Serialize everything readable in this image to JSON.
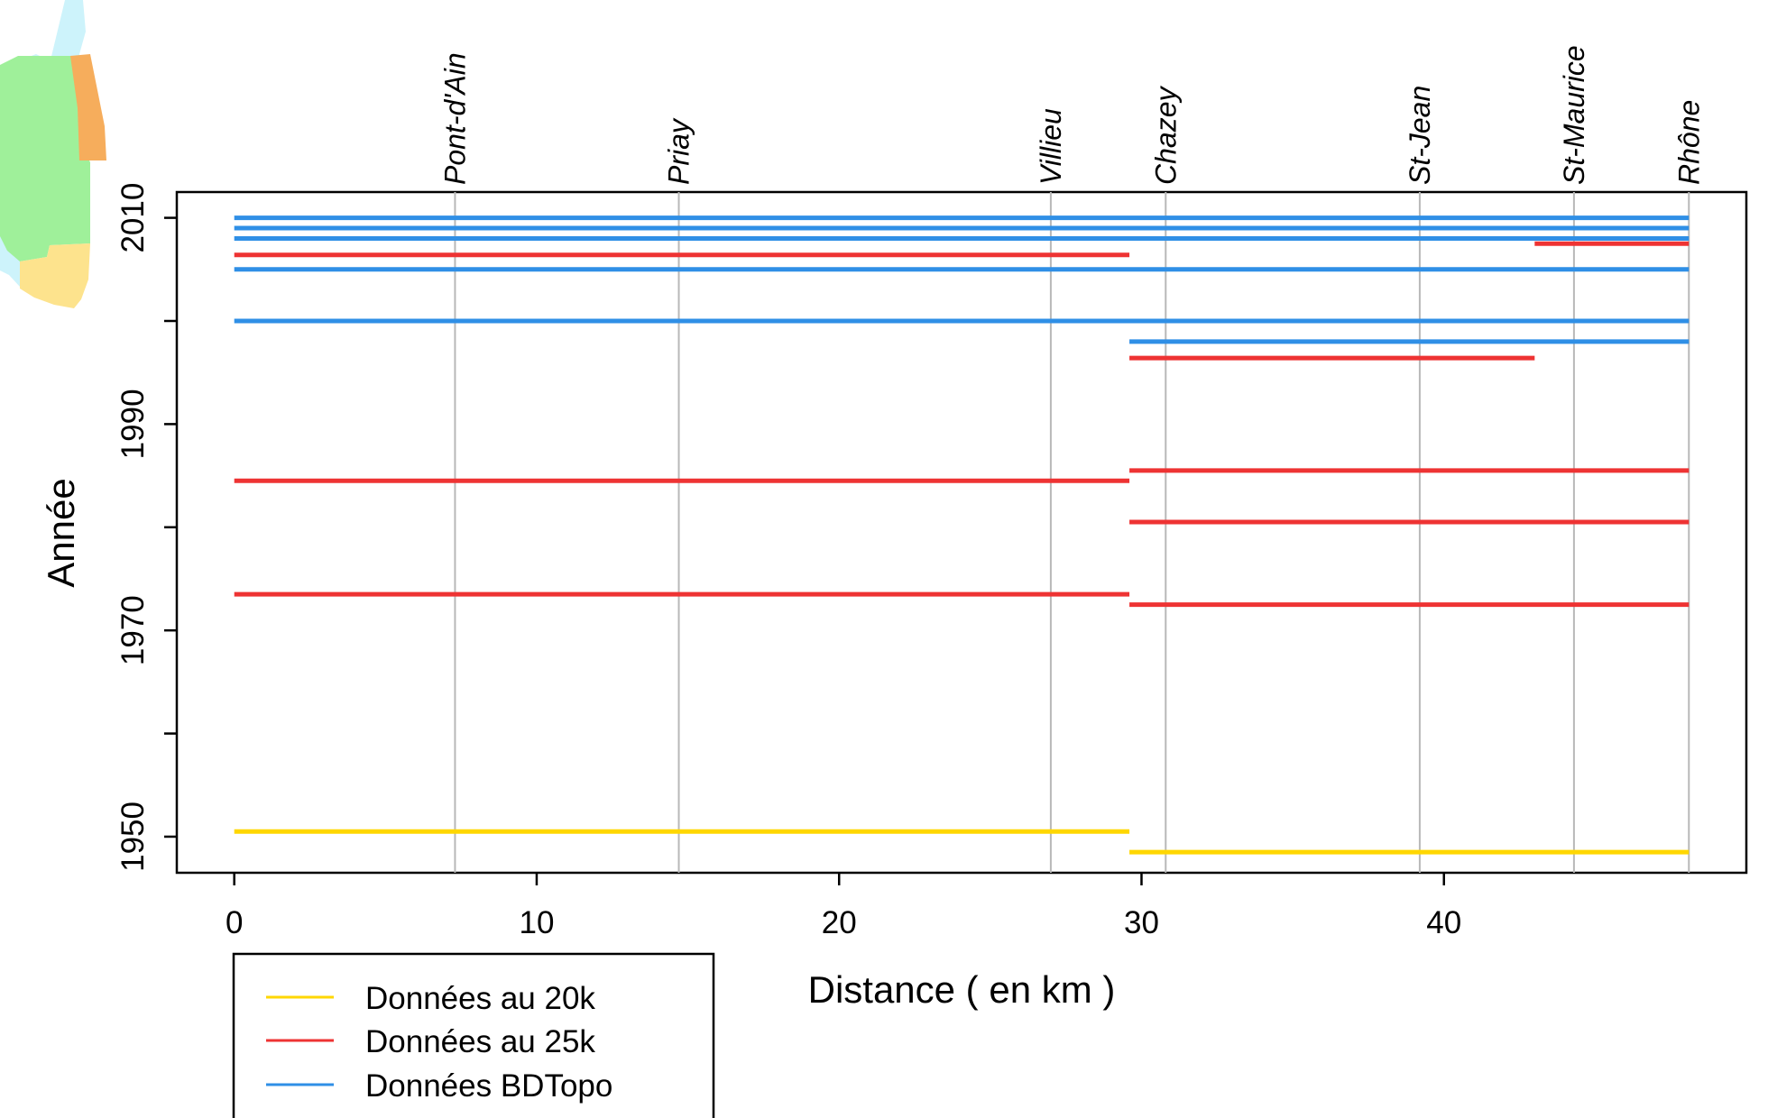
{
  "chart_data": {
    "type": "line",
    "title": "",
    "xlabel": "Distance ( en km )",
    "ylabel": "Année",
    "xlim": [
      -1.9,
      50.0
    ],
    "ylim": [
      1946.5,
      2012.5
    ],
    "x_ticks": [
      "0",
      "10",
      "20",
      "30",
      "40"
    ],
    "x_tick_values": [
      0,
      10,
      20,
      30,
      40
    ],
    "y_ticks": [
      "1950",
      "1970",
      "1990",
      "2010"
    ],
    "y_tick_values": [
      1950,
      1970,
      1990,
      2010
    ],
    "y_minor_tick_values": [
      1960,
      1980,
      2000
    ],
    "grid": false,
    "reference_lines": [
      {
        "label": "Pont-d'Ain",
        "x": 7.3
      },
      {
        "label": "Priay",
        "x": 14.7
      },
      {
        "label": "Villieu",
        "x": 27.0
      },
      {
        "label": "Chazey",
        "x": 30.8
      },
      {
        "label": "St-Jean",
        "x": 39.2
      },
      {
        "label": "St-Maurice",
        "x": 44.3
      },
      {
        "label": "Rhône",
        "x": 48.1
      }
    ],
    "legend_position": "bottom-left",
    "series": [
      {
        "name": "Données au 20k",
        "color": "#ffd700",
        "segments": [
          {
            "x_start": 0,
            "x_end": 29.6,
            "year": 1950.5
          },
          {
            "x_start": 29.6,
            "x_end": 48.1,
            "year": 1948.5
          }
        ]
      },
      {
        "name": "Données au 25k",
        "color": "#ee3333",
        "segments": [
          {
            "x_start": 0,
            "x_end": 29.6,
            "year": 2006.4
          },
          {
            "x_start": 0,
            "x_end": 29.6,
            "year": 1984.5
          },
          {
            "x_start": 0,
            "x_end": 29.6,
            "year": 1973.5
          },
          {
            "x_start": 29.6,
            "x_end": 43.0,
            "year": 1996.4
          },
          {
            "x_start": 29.6,
            "x_end": 48.1,
            "year": 1985.5
          },
          {
            "x_start": 29.6,
            "x_end": 48.1,
            "year": 1980.5
          },
          {
            "x_start": 29.6,
            "x_end": 48.1,
            "year": 1972.5
          },
          {
            "x_start": 43.0,
            "x_end": 48.1,
            "year": 2007.5
          }
        ]
      },
      {
        "name": "Données BDTopo",
        "color": "#2f8fe6",
        "segments": [
          {
            "x_start": 0,
            "x_end": 48.1,
            "year": 2010.0
          },
          {
            "x_start": 0,
            "x_end": 48.1,
            "year": 2009.0
          },
          {
            "x_start": 0,
            "x_end": 48.1,
            "year": 2008.0
          },
          {
            "x_start": 0,
            "x_end": 48.1,
            "year": 2005.0
          },
          {
            "x_start": 0,
            "x_end": 48.1,
            "year": 2000.0
          },
          {
            "x_start": 29.6,
            "x_end": 48.1,
            "year": 1998.0
          }
        ]
      }
    ]
  },
  "inset_map": {
    "zone_colors": [
      "#cdf3fb",
      "#9ff09a",
      "#f6ad5c",
      "#fde38d"
    ]
  }
}
